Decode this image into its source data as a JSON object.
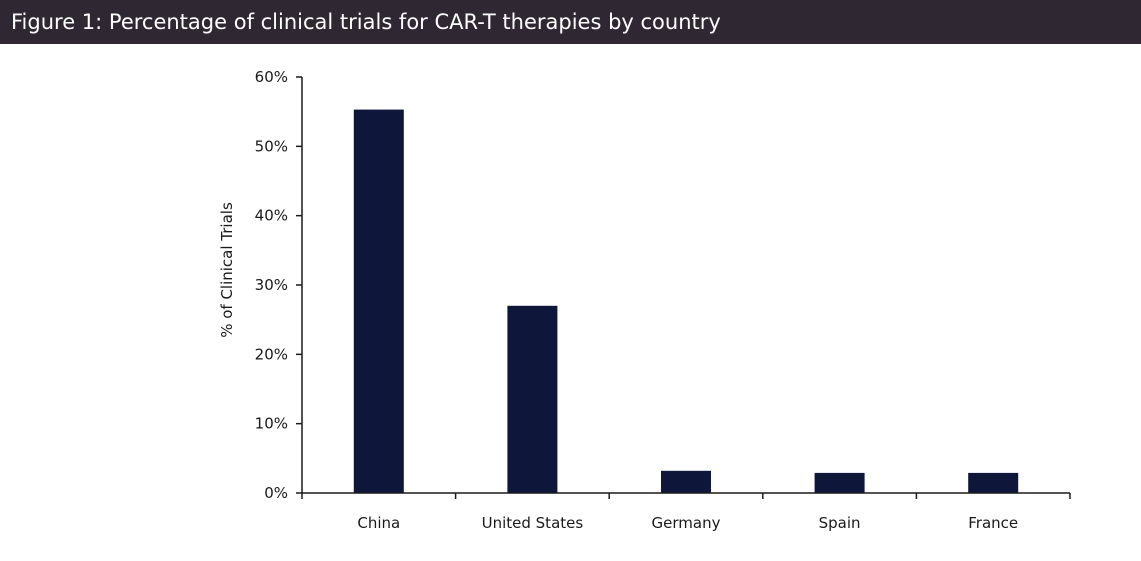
{
  "header": {
    "title": "Figure 1: Percentage of clinical trials for CAR-T therapies by country"
  },
  "colors": {
    "header_bg": "#2f2833",
    "bar": "#0e1639",
    "axis": "#1a1a1a"
  },
  "chart_data": {
    "type": "bar",
    "title": "Figure 1: Percentage of clinical trials for CAR-T therapies by country",
    "xlabel": "",
    "ylabel": "% of Clinical Trials",
    "categories": [
      "China",
      "United States",
      "Germany",
      "Spain",
      "France"
    ],
    "values": [
      55.3,
      27.0,
      3.2,
      2.9,
      2.9
    ],
    "ylim": [
      0,
      60
    ],
    "yticks": [
      0,
      10,
      20,
      30,
      40,
      50,
      60
    ],
    "ytick_labels": [
      "0%",
      "10%",
      "20%",
      "30%",
      "40%",
      "50%",
      "60%"
    ],
    "grid": false,
    "legend": "none"
  }
}
